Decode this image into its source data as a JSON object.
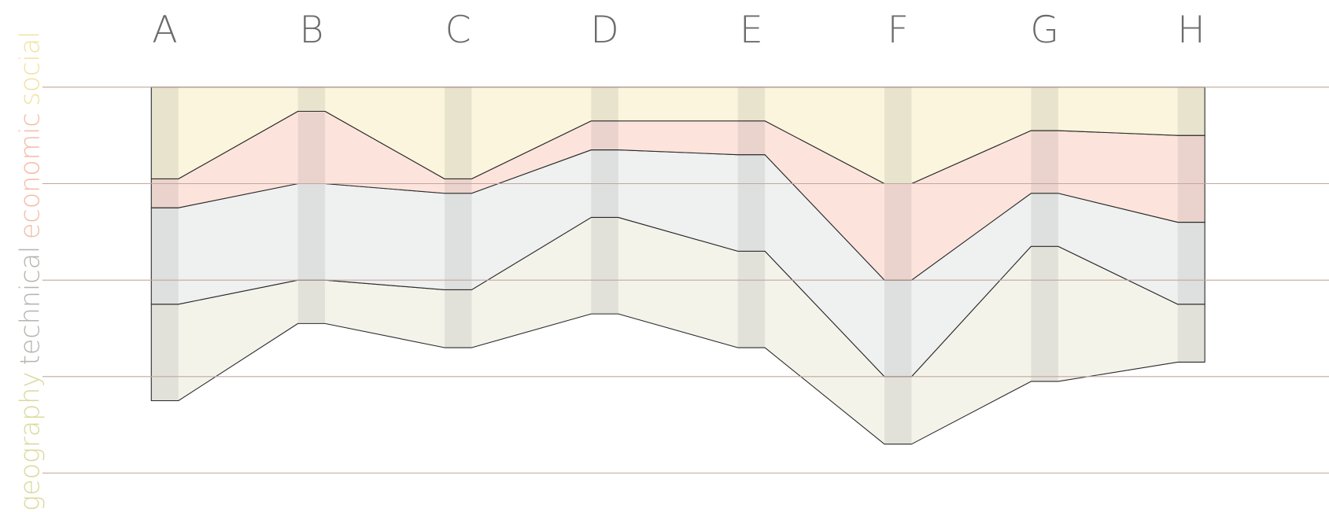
{
  "chart_data": {
    "type": "stacked-band",
    "categories": [
      "A",
      "B",
      "C",
      "D",
      "E",
      "F",
      "G",
      "H"
    ],
    "series": [
      {
        "name": "social",
        "color": "#faf5dc",
        "label_color": "#f0e3a0",
        "values": [
          0.95,
          0.25,
          0.95,
          0.35,
          0.35,
          1.0,
          0.45,
          0.5
        ]
      },
      {
        "name": "economic",
        "color": "#fce4dc",
        "label_color": "#f4bca6",
        "values": [
          0.3,
          0.75,
          0.15,
          0.3,
          0.35,
          1.0,
          0.65,
          0.9
        ]
      },
      {
        "name": "technical",
        "color": "#eff0f0",
        "label_color": "#b4b3ad",
        "values": [
          1.0,
          1.0,
          1.0,
          0.7,
          1.0,
          1.0,
          0.55,
          0.85
        ]
      },
      {
        "name": "geography",
        "color": "#f4f3ea",
        "label_color": "#dcd89c",
        "values": [
          1.0,
          0.45,
          0.6,
          1.0,
          1.0,
          0.7,
          1.4,
          0.6
        ]
      }
    ],
    "ylim": [
      0,
      4
    ],
    "yticks": [
      0,
      1,
      2,
      3,
      4
    ],
    "grid": true,
    "inverted": true
  }
}
